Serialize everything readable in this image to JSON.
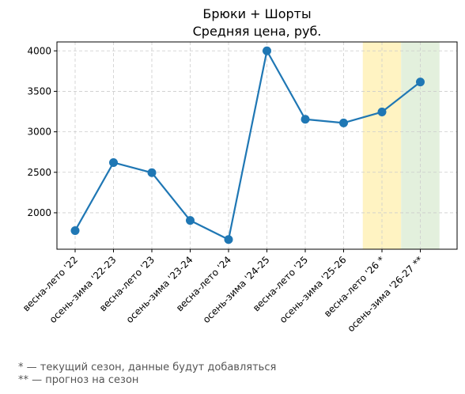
{
  "chart_data": {
    "type": "line",
    "title": "Брюки + Шорты",
    "subtitle": "Средняя цена, руб.",
    "categories": [
      "весна-лето '22",
      "осень-зима '22-23",
      "весна-лето '23",
      "осень-зима '23-24",
      "весна-лето '24",
      "осень-зима '24-25",
      "весна-лето '25",
      "осень-зима '25-26",
      "весна-лето '26 *",
      "осень-зима '26-27 **"
    ],
    "values": [
      1780,
      2620,
      2495,
      1905,
      1670,
      4000,
      3155,
      3110,
      3245,
      3615
    ],
    "ylim": [
      1550,
      4110
    ],
    "yticks": [
      2000,
      2500,
      3000,
      3500,
      4000
    ],
    "grid": true,
    "line_color": "#1f77b4",
    "highlights": [
      {
        "category_index": 8,
        "color": "#fff3c2"
      },
      {
        "category_index": 9,
        "color": "#e3f0dd"
      }
    ],
    "footnotes": [
      "* — текущий сезон, данные будут добавляться",
      "** — прогноз на сезон"
    ]
  }
}
